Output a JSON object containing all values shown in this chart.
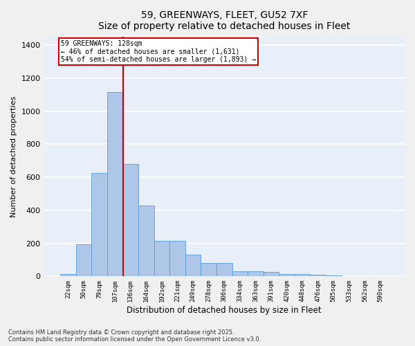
{
  "title_line1": "59, GREENWAYS, FLEET, GU52 7XF",
  "title_line2": "Size of property relative to detached houses in Fleet",
  "xlabel": "Distribution of detached houses by size in Fleet",
  "ylabel": "Number of detached properties",
  "categories": [
    "22sqm",
    "50sqm",
    "79sqm",
    "107sqm",
    "136sqm",
    "164sqm",
    "192sqm",
    "221sqm",
    "249sqm",
    "278sqm",
    "306sqm",
    "334sqm",
    "363sqm",
    "391sqm",
    "420sqm",
    "448sqm",
    "476sqm",
    "505sqm",
    "533sqm",
    "562sqm",
    "590sqm"
  ],
  "values": [
    15,
    195,
    625,
    1115,
    680,
    430,
    215,
    215,
    130,
    80,
    80,
    30,
    30,
    25,
    15,
    15,
    8,
    5,
    0,
    0,
    0
  ],
  "bar_color": "#aec6e8",
  "bar_edge_color": "#5b9bd5",
  "background_color": "#e8eff9",
  "grid_color": "#ffffff",
  "fig_bg_color": "#f0f0f0",
  "ylim": [
    0,
    1450
  ],
  "yticks": [
    0,
    200,
    400,
    600,
    800,
    1000,
    1200,
    1400
  ],
  "annotation_text": "59 GREENWAYS: 128sqm\n← 46% of detached houses are smaller (1,631)\n54% of semi-detached houses are larger (1,893) →",
  "vline_bar_index": 3,
  "vline_color": "#cc0000",
  "annotation_box_color": "#ffffff",
  "annotation_box_edge": "#cc0000",
  "footer_line1": "Contains HM Land Registry data © Crown copyright and database right 2025.",
  "footer_line2": "Contains public sector information licensed under the Open Government Licence v3.0."
}
